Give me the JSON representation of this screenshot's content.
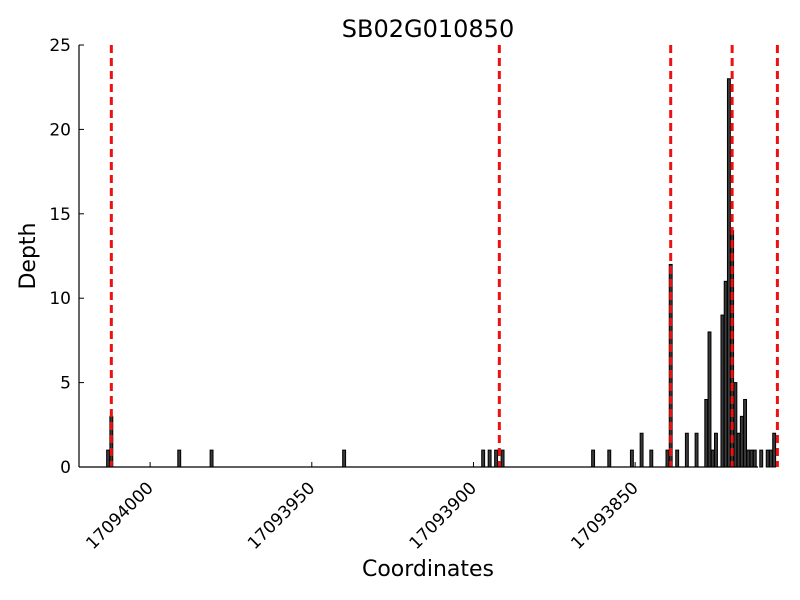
{
  "chart_data": {
    "type": "bar",
    "title": "SB02G010850",
    "xlabel": "Coordinates",
    "ylabel": "Depth",
    "xlim": [
      17094022,
      17093812
    ],
    "ylim": [
      0,
      25
    ],
    "x_reversed": true,
    "yticks": [
      0,
      5,
      10,
      15,
      20,
      25
    ],
    "xticks": [
      17094000,
      17093950,
      17093900,
      17093850
    ],
    "grid": false,
    "bar_color": "#3a3a3a",
    "vline_color": "#ee1111",
    "vlines": [
      17094012,
      17093892,
      17093839,
      17093820,
      17093806
    ],
    "bars": [
      {
        "x": 17094013,
        "value": 1
      },
      {
        "x": 17094012,
        "value": 3
      },
      {
        "x": 17093991,
        "value": 1
      },
      {
        "x": 17093981,
        "value": 1
      },
      {
        "x": 17093940,
        "value": 1
      },
      {
        "x": 17093897,
        "value": 1
      },
      {
        "x": 17093895,
        "value": 1
      },
      {
        "x": 17093893,
        "value": 1
      },
      {
        "x": 17093891,
        "value": 1
      },
      {
        "x": 17093863,
        "value": 1
      },
      {
        "x": 17093858,
        "value": 1
      },
      {
        "x": 17093851,
        "value": 1
      },
      {
        "x": 17093848,
        "value": 2
      },
      {
        "x": 17093845,
        "value": 1
      },
      {
        "x": 17093840,
        "value": 1
      },
      {
        "x": 17093839,
        "value": 12
      },
      {
        "x": 17093837,
        "value": 1
      },
      {
        "x": 17093834,
        "value": 2
      },
      {
        "x": 17093831,
        "value": 2
      },
      {
        "x": 17093828,
        "value": 4
      },
      {
        "x": 17093827,
        "value": 8
      },
      {
        "x": 17093826,
        "value": 1
      },
      {
        "x": 17093825,
        "value": 2
      },
      {
        "x": 17093823,
        "value": 9
      },
      {
        "x": 17093822,
        "value": 11
      },
      {
        "x": 17093821,
        "value": 23
      },
      {
        "x": 17093820,
        "value": 14
      },
      {
        "x": 17093819,
        "value": 5
      },
      {
        "x": 17093818,
        "value": 2
      },
      {
        "x": 17093817,
        "value": 3
      },
      {
        "x": 17093816,
        "value": 4
      },
      {
        "x": 17093815,
        "value": 1
      },
      {
        "x": 17093814,
        "value": 1
      },
      {
        "x": 17093813,
        "value": 1
      },
      {
        "x": 17093811,
        "value": 1
      },
      {
        "x": 17093809,
        "value": 1
      },
      {
        "x": 17093808,
        "value": 1
      },
      {
        "x": 17093807,
        "value": 2
      }
    ]
  }
}
